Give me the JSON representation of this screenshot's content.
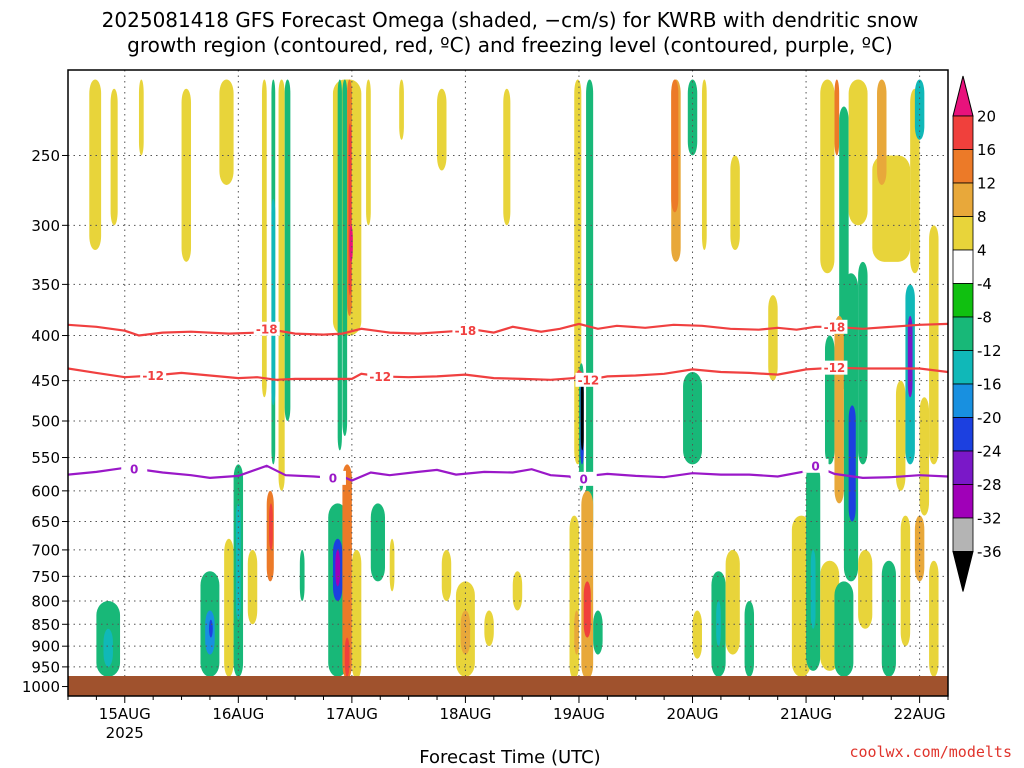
{
  "title": {
    "line1": "2025081418 GFS Forecast Omega (shaded, −cm/s) for KWRB with dendritic snow",
    "line2": "growth region (contoured, red, ºC) and freezing level (contoured, purple, ºC)"
  },
  "xlabel": "Forecast Time (UTC)",
  "credit": "coolwx.com/modelts",
  "chart_data": {
    "type": "heatmap",
    "title": "2025081418 GFS Forecast Omega (shaded, −cm/s) for KWRB with dendritic snow growth region (contoured, red, ºC) and freezing level (contoured, purple, ºC)",
    "xlabel": "Forecast Time (UTC)",
    "ylabel": "",
    "x_range_hours": [
      -12,
      174
    ],
    "x_ticks": [
      {
        "label": "15AUG",
        "sublabel": "2025",
        "hour": 0
      },
      {
        "label": "16AUG",
        "hour": 24
      },
      {
        "label": "17AUG",
        "hour": 48
      },
      {
        "label": "18AUG",
        "hour": 72
      },
      {
        "label": "19AUG",
        "hour": 96
      },
      {
        "label": "20AUG",
        "hour": 120
      },
      {
        "label": "21AUG",
        "hour": 144
      },
      {
        "label": "22AUG",
        "hour": 168
      }
    ],
    "y_axis": "pressure (hPa), log scale, inverted",
    "y_range": [
      200,
      1025
    ],
    "y_ticks": [
      250,
      300,
      350,
      400,
      450,
      500,
      550,
      600,
      650,
      700,
      750,
      800,
      850,
      900,
      950,
      1000
    ],
    "grid": true,
    "colorbar": {
      "levels": [
        20,
        16,
        12,
        8,
        4,
        -4,
        -8,
        -12,
        -16,
        -20,
        -24,
        -28,
        -32,
        -36
      ],
      "colors": [
        "#e8127c",
        "#f0403c",
        "#ec7a28",
        "#e8a83a",
        "#e8d43a",
        "#ffffff",
        "#10c010",
        "#18b878",
        "#10b8b8",
        "#1890e0",
        "#1c40e0",
        "#7a18c8",
        "#a000b8",
        "#b4b4b4",
        "#000000"
      ]
    },
    "omega_cells": [
      {
        "t0": -7.5,
        "t1": -5,
        "p0": 205,
        "p1": 320,
        "v": 6
      },
      {
        "t0": -3,
        "t1": -1.5,
        "p0": 210,
        "p1": 300,
        "v": 5
      },
      {
        "t0": 3,
        "t1": 4,
        "p0": 205,
        "p1": 250,
        "v": 5
      },
      {
        "t0": 12,
        "t1": 14,
        "p0": 210,
        "p1": 330,
        "v": 5
      },
      {
        "t0": 20,
        "t1": 23,
        "p0": 205,
        "p1": 270,
        "v": 5
      },
      {
        "t0": 29,
        "t1": 30,
        "p0": 205,
        "p1": 470,
        "v": 5
      },
      {
        "t0": 31,
        "t1": 31.8,
        "p0": 205,
        "p1": 560,
        "v": -8
      },
      {
        "t0": 31,
        "t1": 31.8,
        "p0": 280,
        "p1": 480,
        "v": -14
      },
      {
        "t0": 32.5,
        "t1": 33.8,
        "p0": 205,
        "p1": 600,
        "v": 5
      },
      {
        "t0": 33.8,
        "t1": 35,
        "p0": 205,
        "p1": 500,
        "v": -8
      },
      {
        "t0": 44,
        "t1": 50,
        "p0": 205,
        "p1": 400,
        "v": 6
      },
      {
        "t0": 45,
        "t1": 45.9,
        "p0": 205,
        "p1": 540,
        "v": -10
      },
      {
        "t0": 46,
        "t1": 47,
        "p0": 205,
        "p1": 520,
        "v": -8
      },
      {
        "t0": 47,
        "t1": 48,
        "p0": 205,
        "p1": 380,
        "v": 12
      },
      {
        "t0": 47.3,
        "t1": 47.9,
        "p0": 230,
        "p1": 360,
        "v": 18
      },
      {
        "t0": 47.5,
        "t1": 48.2,
        "p0": 300,
        "p1": 330,
        "v": 22
      },
      {
        "t0": 51,
        "t1": 52,
        "p0": 205,
        "p1": 300,
        "v": 5
      },
      {
        "t0": 58,
        "t1": 59,
        "p0": 205,
        "p1": 240,
        "v": 5
      },
      {
        "t0": 66,
        "t1": 68,
        "p0": 210,
        "p1": 260,
        "v": 5
      },
      {
        "t0": 80,
        "t1": 81.5,
        "p0": 210,
        "p1": 300,
        "v": 5
      },
      {
        "t0": 95,
        "t1": 96.5,
        "p0": 205,
        "p1": 560,
        "v": 5
      },
      {
        "t0": 96,
        "t1": 97,
        "p0": 430,
        "p1": 600,
        "v": -10
      },
      {
        "t0": 96.3,
        "t1": 97,
        "p0": 440,
        "p1": 560,
        "v": -22
      },
      {
        "t0": 96.4,
        "t1": 97,
        "p0": 450,
        "p1": 540,
        "v": -38
      },
      {
        "t0": 97.5,
        "t1": 99,
        "p0": 205,
        "p1": 680,
        "v": -8
      },
      {
        "t0": 115.5,
        "t1": 117.5,
        "p0": 205,
        "p1": 330,
        "v": 8
      },
      {
        "t0": 115.5,
        "t1": 117,
        "p0": 205,
        "p1": 290,
        "v": 12
      },
      {
        "t0": 119,
        "t1": 121,
        "p0": 205,
        "p1": 250,
        "v": -8
      },
      {
        "t0": 118,
        "t1": 122,
        "p0": 440,
        "p1": 560,
        "v": -8
      },
      {
        "t0": 122,
        "t1": 123,
        "p0": 205,
        "p1": 320,
        "v": 5
      },
      {
        "t0": 128,
        "t1": 130,
        "p0": 250,
        "p1": 320,
        "v": 5
      },
      {
        "t0": 136,
        "t1": 138,
        "p0": 360,
        "p1": 450,
        "v": 5
      },
      {
        "t0": 147,
        "t1": 150,
        "p0": 205,
        "p1": 340,
        "v": 5
      },
      {
        "t0": 150,
        "t1": 151,
        "p0": 205,
        "p1": 250,
        "v": 14
      },
      {
        "t0": 151,
        "t1": 153,
        "p0": 220,
        "p1": 460,
        "v": -8
      },
      {
        "t0": 153,
        "t1": 157,
        "p0": 205,
        "p1": 300,
        "v": 5
      },
      {
        "t0": 158,
        "t1": 166,
        "p0": 250,
        "p1": 330,
        "v": 6
      },
      {
        "t0": 159,
        "t1": 161,
        "p0": 205,
        "p1": 270,
        "v": 8
      },
      {
        "t0": 166,
        "t1": 168,
        "p0": 210,
        "p1": 340,
        "v": 5
      },
      {
        "t0": 167,
        "t1": 169,
        "p0": 205,
        "p1": 240,
        "v": -12
      },
      {
        "t0": 170,
        "t1": 172,
        "p0": 300,
        "p1": 560,
        "v": 5
      },
      {
        "t0": 148,
        "t1": 150,
        "p0": 400,
        "p1": 560,
        "v": -10
      },
      {
        "t0": 150,
        "t1": 152,
        "p0": 380,
        "p1": 620,
        "v": 8
      },
      {
        "t0": 152,
        "t1": 155,
        "p0": 340,
        "p1": 760,
        "v": -10
      },
      {
        "t0": 153,
        "t1": 154.5,
        "p0": 480,
        "p1": 650,
        "v": -20
      },
      {
        "t0": 155,
        "t1": 157,
        "p0": 330,
        "p1": 560,
        "v": -8
      },
      {
        "t0": 163,
        "t1": 165,
        "p0": 450,
        "p1": 600,
        "v": 6
      },
      {
        "t0": 165,
        "t1": 167,
        "p0": 350,
        "p1": 560,
        "v": -12
      },
      {
        "t0": 165.5,
        "t1": 166.5,
        "p0": 380,
        "p1": 470,
        "v": -24
      },
      {
        "t0": 168,
        "t1": 170,
        "p0": 470,
        "p1": 640,
        "v": 5
      },
      {
        "t0": -6,
        "t1": -1,
        "p0": 800,
        "p1": 975,
        "v": -9
      },
      {
        "t0": -4.5,
        "t1": -2.5,
        "p0": 860,
        "p1": 950,
        "v": -14
      },
      {
        "t0": 16,
        "t1": 20,
        "p0": 740,
        "p1": 975,
        "v": -9
      },
      {
        "t0": 17,
        "t1": 19,
        "p0": 820,
        "p1": 920,
        "v": -18
      },
      {
        "t0": 17.8,
        "t1": 18.6,
        "p0": 840,
        "p1": 880,
        "v": -22
      },
      {
        "t0": 21,
        "t1": 23,
        "p0": 680,
        "p1": 975,
        "v": 5
      },
      {
        "t0": 23,
        "t1": 25,
        "p0": 560,
        "p1": 975,
        "v": -9
      },
      {
        "t0": 23.5,
        "t1": 24.5,
        "p0": 620,
        "p1": 840,
        "v": -14
      },
      {
        "t0": 26,
        "t1": 28,
        "p0": 700,
        "p1": 850,
        "v": 6
      },
      {
        "t0": 30,
        "t1": 31.5,
        "p0": 600,
        "p1": 760,
        "v": 14
      },
      {
        "t0": 30.5,
        "t1": 31.3,
        "p0": 620,
        "p1": 700,
        "v": 18
      },
      {
        "t0": 37,
        "t1": 38,
        "p0": 700,
        "p1": 800,
        "v": -8
      },
      {
        "t0": 43,
        "t1": 47,
        "p0": 620,
        "p1": 975,
        "v": -9
      },
      {
        "t0": 44,
        "t1": 46,
        "p0": 680,
        "p1": 800,
        "v": -22
      },
      {
        "t0": 44.5,
        "t1": 45.5,
        "p0": 700,
        "p1": 770,
        "v": -28
      },
      {
        "t0": 46,
        "t1": 48,
        "p0": 560,
        "p1": 980,
        "v": 12
      },
      {
        "t0": 46.5,
        "t1": 47.5,
        "p0": 880,
        "p1": 975,
        "v": 18
      },
      {
        "t0": 48,
        "t1": 50,
        "p0": 700,
        "p1": 980,
        "v": 6
      },
      {
        "t0": 52,
        "t1": 55,
        "p0": 620,
        "p1": 760,
        "v": -8
      },
      {
        "t0": 56,
        "t1": 57,
        "p0": 680,
        "p1": 780,
        "v": 5
      },
      {
        "t0": 67,
        "t1": 69,
        "p0": 700,
        "p1": 800,
        "v": 5
      },
      {
        "t0": 70,
        "t1": 74,
        "p0": 760,
        "p1": 975,
        "v": 6
      },
      {
        "t0": 71,
        "t1": 73,
        "p0": 820,
        "p1": 920,
        "v": 9
      },
      {
        "t0": 76,
        "t1": 78,
        "p0": 820,
        "p1": 900,
        "v": 5
      },
      {
        "t0": 82,
        "t1": 84,
        "p0": 740,
        "p1": 820,
        "v": 5
      },
      {
        "t0": 94,
        "t1": 96,
        "p0": 640,
        "p1": 980,
        "v": 6
      },
      {
        "t0": 95,
        "t1": 96,
        "p0": 820,
        "p1": 920,
        "v": 9
      },
      {
        "t0": 96.5,
        "t1": 99,
        "p0": 600,
        "p1": 980,
        "v": 10
      },
      {
        "t0": 97,
        "t1": 98.5,
        "p0": 760,
        "p1": 880,
        "v": 18
      },
      {
        "t0": 99,
        "t1": 101,
        "p0": 820,
        "p1": 920,
        "v": -8
      },
      {
        "t0": 120,
        "t1": 122,
        "p0": 820,
        "p1": 930,
        "v": 5
      },
      {
        "t0": 124,
        "t1": 127,
        "p0": 740,
        "p1": 975,
        "v": -9
      },
      {
        "t0": 125,
        "t1": 126,
        "p0": 800,
        "p1": 900,
        "v": -14
      },
      {
        "t0": 127,
        "t1": 130,
        "p0": 700,
        "p1": 920,
        "v": 5
      },
      {
        "t0": 131,
        "t1": 133,
        "p0": 800,
        "p1": 975,
        "v": -8
      },
      {
        "t0": 141,
        "t1": 145,
        "p0": 640,
        "p1": 975,
        "v": 5
      },
      {
        "t0": 144,
        "t1": 147,
        "p0": 560,
        "p1": 960,
        "v": -9
      },
      {
        "t0": 145,
        "t1": 146,
        "p0": 700,
        "p1": 860,
        "v": -14
      },
      {
        "t0": 147,
        "t1": 151,
        "p0": 720,
        "p1": 960,
        "v": 6
      },
      {
        "t0": 150,
        "t1": 154,
        "p0": 760,
        "p1": 975,
        "v": -8
      },
      {
        "t0": 155,
        "t1": 158,
        "p0": 700,
        "p1": 860,
        "v": 5
      },
      {
        "t0": 160,
        "t1": 163,
        "p0": 720,
        "p1": 975,
        "v": -8
      },
      {
        "t0": 164,
        "t1": 166,
        "p0": 640,
        "p1": 900,
        "v": 6
      },
      {
        "t0": 167,
        "t1": 169,
        "p0": 640,
        "p1": 760,
        "v": 10
      },
      {
        "t0": 170,
        "t1": 172,
        "p0": 720,
        "p1": 975,
        "v": 5
      }
    ],
    "dgz_contours": [
      {
        "level": -18,
        "label": "-18",
        "color": "#f04040",
        "points": [
          [
            -12,
            389
          ],
          [
            -6,
            391
          ],
          [
            0,
            395
          ],
          [
            3,
            400
          ],
          [
            8,
            397
          ],
          [
            14,
            396
          ],
          [
            22,
            398
          ],
          [
            28,
            397
          ],
          [
            30,
            393
          ],
          [
            36,
            398
          ],
          [
            42,
            399
          ],
          [
            46,
            398
          ],
          [
            50,
            393
          ],
          [
            56,
            397
          ],
          [
            62,
            398
          ],
          [
            68,
            396
          ],
          [
            74,
            394
          ],
          [
            78,
            397
          ],
          [
            82,
            391
          ],
          [
            88,
            396
          ],
          [
            92,
            393
          ],
          [
            96,
            388
          ],
          [
            100,
            393
          ],
          [
            104,
            390
          ],
          [
            110,
            392
          ],
          [
            116,
            389
          ],
          [
            122,
            390
          ],
          [
            128,
            393
          ],
          [
            134,
            394
          ],
          [
            138,
            392
          ],
          [
            142,
            394
          ],
          [
            146,
            391
          ],
          [
            150,
            391
          ],
          [
            156,
            393
          ],
          [
            162,
            391
          ],
          [
            168,
            389
          ],
          [
            174,
            388
          ]
        ],
        "label_hours": [
          30,
          72,
          150
        ]
      },
      {
        "level": -12,
        "label": "-12",
        "color": "#f04040",
        "points": [
          [
            -12,
            436
          ],
          [
            -6,
            441
          ],
          [
            0,
            446
          ],
          [
            6,
            444
          ],
          [
            12,
            441
          ],
          [
            18,
            444
          ],
          [
            24,
            447
          ],
          [
            28,
            446
          ],
          [
            32,
            449
          ],
          [
            36,
            448
          ],
          [
            42,
            448
          ],
          [
            48,
            448
          ],
          [
            50,
            442
          ],
          [
            54,
            445
          ],
          [
            60,
            446
          ],
          [
            66,
            445
          ],
          [
            72,
            443
          ],
          [
            78,
            447
          ],
          [
            84,
            448
          ],
          [
            90,
            449
          ],
          [
            95,
            447
          ],
          [
            96,
            439
          ],
          [
            98,
            449
          ],
          [
            102,
            445
          ],
          [
            108,
            444
          ],
          [
            114,
            442
          ],
          [
            120,
            437
          ],
          [
            126,
            440
          ],
          [
            132,
            441
          ],
          [
            138,
            443
          ],
          [
            144,
            437
          ],
          [
            150,
            435
          ],
          [
            156,
            436
          ],
          [
            162,
            436
          ],
          [
            168,
            436
          ],
          [
            174,
            440
          ]
        ],
        "label_hours": [
          6,
          54,
          98,
          150
        ]
      }
    ],
    "freezing_contour": {
      "level": 0,
      "label": "0",
      "color": "#9a18c8",
      "points": [
        [
          -12,
          575
        ],
        [
          -6,
          571
        ],
        [
          0,
          565
        ],
        [
          4,
          568
        ],
        [
          8,
          572
        ],
        [
          14,
          576
        ],
        [
          18,
          580
        ],
        [
          24,
          577
        ],
        [
          30,
          562
        ],
        [
          34,
          576
        ],
        [
          40,
          578
        ],
        [
          44,
          580
        ],
        [
          46,
          578
        ],
        [
          48,
          584
        ],
        [
          52,
          572
        ],
        [
          56,
          576
        ],
        [
          62,
          571
        ],
        [
          66,
          568
        ],
        [
          70,
          575
        ],
        [
          76,
          571
        ],
        [
          82,
          572
        ],
        [
          86,
          567
        ],
        [
          90,
          576
        ],
        [
          94,
          578
        ],
        [
          96,
          586
        ],
        [
          98,
          577
        ],
        [
          102,
          574
        ],
        [
          108,
          577
        ],
        [
          114,
          579
        ],
        [
          120,
          573
        ],
        [
          126,
          575
        ],
        [
          132,
          575
        ],
        [
          138,
          578
        ],
        [
          144,
          570
        ],
        [
          146,
          562
        ],
        [
          150,
          574
        ],
        [
          156,
          580
        ],
        [
          162,
          579
        ],
        [
          168,
          576
        ],
        [
          174,
          578
        ]
      ],
      "label_hours": [
        2,
        44,
        97,
        146
      ]
    }
  }
}
